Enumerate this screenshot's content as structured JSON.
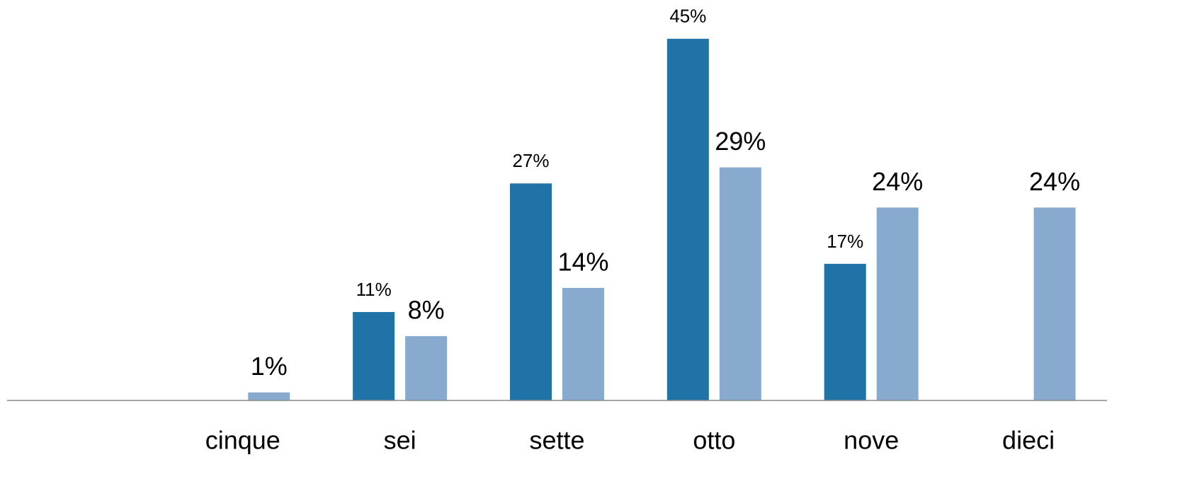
{
  "chart_data": {
    "type": "bar",
    "categories": [
      null,
      "cinque",
      "sei",
      "sette",
      "otto",
      "nove",
      "dieci"
    ],
    "series": [
      {
        "color": "#2073a6",
        "values": [
          null,
          null,
          11,
          27,
          45,
          17,
          null
        ],
        "value_labels": [
          null,
          null,
          "11%",
          "27%",
          "45%",
          "17%",
          null
        ]
      },
      {
        "color": "#88aacf",
        "values": [
          null,
          1,
          8,
          14,
          29,
          24,
          24
        ],
        "value_labels": [
          null,
          "1%",
          "8%",
          "14%",
          "29%",
          "24%",
          "24%"
        ]
      }
    ],
    "ylim": [
      0,
      50
    ]
  }
}
